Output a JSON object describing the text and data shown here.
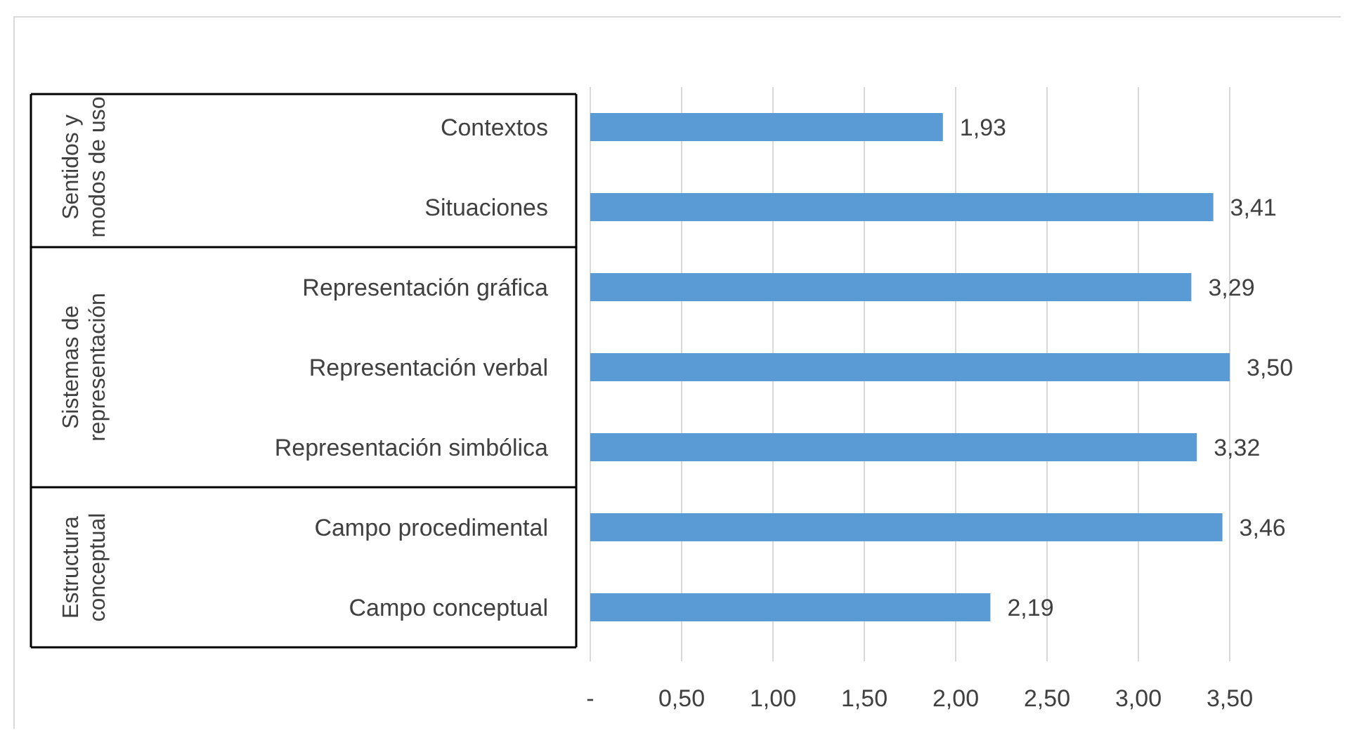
{
  "chart_data": {
    "type": "bar",
    "orientation": "horizontal",
    "categories": [
      "Contextos",
      "Situaciones",
      "Representación gráfica",
      "Representación verbal",
      "Representación simbólica",
      "Campo procedimental",
      "Campo conceptual"
    ],
    "values": [
      1.93,
      3.41,
      3.29,
      3.5,
      3.32,
      3.46,
      2.19
    ],
    "value_labels": [
      "1,93",
      "3,41",
      "3,29",
      "3,50",
      "3,32",
      "3,46",
      "2,19"
    ],
    "color": "#5b9bd5",
    "xlim": [
      0,
      3.5
    ],
    "xticks": [
      {
        "value": 0,
        "label": "-"
      },
      {
        "value": 0.5,
        "label": "0,50"
      },
      {
        "value": 1,
        "label": "1,00"
      },
      {
        "value": 1.5,
        "label": "1,50"
      },
      {
        "value": 2,
        "label": "2,00"
      },
      {
        "value": 2.5,
        "label": "2,50"
      },
      {
        "value": 3,
        "label": "3,00"
      },
      {
        "value": 3.5,
        "label": "3,50"
      }
    ],
    "grid": "x",
    "annotations": [
      "Sentidos y modos de uso",
      "Sistemas de representación",
      "Estructura conceptual"
    ]
  }
}
